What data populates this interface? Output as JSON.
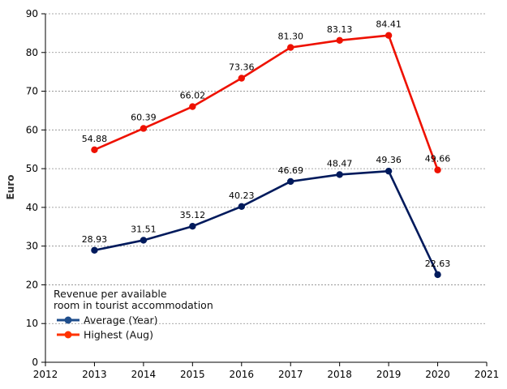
{
  "chart_data": {
    "type": "line",
    "title": "",
    "xlabel": "",
    "ylabel": "Euro",
    "xlim": [
      2012,
      2021
    ],
    "ylim": [
      0,
      90
    ],
    "x_ticks": [
      2012,
      2013,
      2014,
      2015,
      2016,
      2017,
      2018,
      2019,
      2020,
      2021
    ],
    "y_ticks": [
      0,
      10,
      20,
      30,
      40,
      50,
      60,
      70,
      80,
      90
    ],
    "grid": "horizontal dashed",
    "x": [
      2013,
      2014,
      2015,
      2016,
      2017,
      2018,
      2019,
      2020
    ],
    "legend": {
      "title_lines": [
        "Revenue per available",
        "room in tourist accommodation"
      ],
      "placement": "bottom-left"
    },
    "series": [
      {
        "name": "Average (Year)",
        "color": "#001a5c",
        "legend_color": "#1f4e8c",
        "values": [
          28.93,
          31.51,
          35.12,
          40.23,
          46.69,
          48.47,
          49.36,
          22.63
        ],
        "labels": [
          "28.93",
          "31.51",
          "35.12",
          "40.23",
          "46.69",
          "48.47",
          "49.36",
          "22.63"
        ]
      },
      {
        "name": "Highest (Aug)",
        "color": "#ee1100",
        "legend_color": "#ff3300",
        "values": [
          54.88,
          60.39,
          66.02,
          73.36,
          81.3,
          83.13,
          84.41,
          49.66
        ],
        "labels": [
          "54.88",
          "60.39",
          "66.02",
          "73.36",
          "81.30",
          "83.13",
          "84.41",
          "49.66"
        ]
      }
    ]
  }
}
